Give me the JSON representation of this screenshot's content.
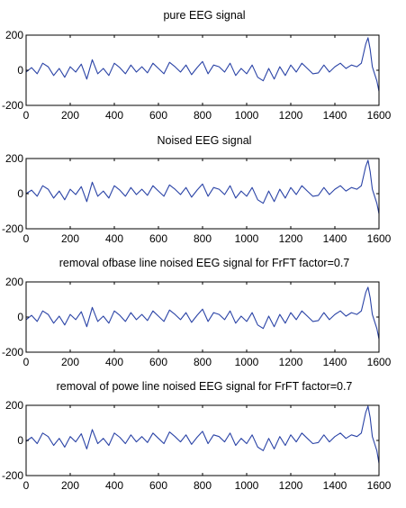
{
  "chart_data": [
    {
      "type": "line",
      "title": "pure EEG signal",
      "xlim": [
        0,
        1600
      ],
      "ylim": [
        -200,
        200
      ],
      "xticks": [
        0,
        200,
        400,
        600,
        800,
        1000,
        1200,
        1400,
        1600
      ],
      "yticks": [
        200,
        0,
        -200
      ],
      "x": [
        0,
        25,
        50,
        75,
        100,
        125,
        150,
        175,
        200,
        225,
        250,
        275,
        300,
        325,
        350,
        375,
        400,
        425,
        450,
        475,
        500,
        525,
        550,
        575,
        600,
        625,
        650,
        675,
        700,
        725,
        750,
        775,
        800,
        825,
        850,
        875,
        900,
        925,
        950,
        975,
        1000,
        1025,
        1050,
        1075,
        1100,
        1125,
        1150,
        1175,
        1200,
        1225,
        1250,
        1275,
        1300,
        1325,
        1350,
        1375,
        1400,
        1425,
        1450,
        1475,
        1500,
        1520,
        1540,
        1550,
        1560,
        1570,
        1580,
        1590,
        1600
      ],
      "y": [
        -10,
        15,
        -20,
        40,
        20,
        -30,
        10,
        -40,
        20,
        -10,
        35,
        -50,
        60,
        -20,
        10,
        -30,
        40,
        15,
        -20,
        30,
        -10,
        20,
        -15,
        40,
        10,
        -20,
        45,
        20,
        -10,
        30,
        -25,
        15,
        50,
        -20,
        30,
        20,
        -10,
        40,
        -30,
        10,
        -20,
        30,
        -40,
        -60,
        10,
        -50,
        20,
        -30,
        30,
        -10,
        40,
        10,
        -20,
        -15,
        30,
        -10,
        20,
        40,
        10,
        30,
        20,
        40,
        150,
        185,
        120,
        20,
        -20,
        -60,
        -120
      ]
    },
    {
      "type": "line",
      "title": "Noised EEG signal",
      "xlim": [
        0,
        1600
      ],
      "ylim": [
        -200,
        200
      ],
      "xticks": [
        0,
        200,
        400,
        600,
        800,
        1000,
        1200,
        1400,
        1600
      ],
      "yticks": [
        200,
        0,
        -200
      ],
      "x": [
        0,
        25,
        50,
        75,
        100,
        125,
        150,
        175,
        200,
        225,
        250,
        275,
        300,
        325,
        350,
        375,
        400,
        425,
        450,
        475,
        500,
        525,
        550,
        575,
        600,
        625,
        650,
        675,
        700,
        725,
        750,
        775,
        800,
        825,
        850,
        875,
        900,
        925,
        950,
        975,
        1000,
        1025,
        1050,
        1075,
        1100,
        1125,
        1150,
        1175,
        1200,
        1225,
        1250,
        1275,
        1300,
        1325,
        1350,
        1375,
        1400,
        1425,
        1450,
        1475,
        1500,
        1520,
        1540,
        1550,
        1560,
        1570,
        1580,
        1590,
        1600
      ],
      "y": [
        0,
        20,
        -15,
        45,
        25,
        -25,
        15,
        -35,
        25,
        -5,
        40,
        -45,
        65,
        -15,
        15,
        -25,
        45,
        20,
        -15,
        35,
        -5,
        25,
        -10,
        45,
        15,
        -15,
        50,
        25,
        -5,
        35,
        -20,
        20,
        55,
        -15,
        35,
        25,
        -5,
        45,
        -25,
        15,
        -15,
        35,
        -35,
        -55,
        15,
        -45,
        25,
        -25,
        35,
        -5,
        45,
        15,
        -15,
        -10,
        35,
        -5,
        25,
        45,
        15,
        35,
        25,
        45,
        155,
        190,
        125,
        25,
        -15,
        -55,
        -115
      ]
    },
    {
      "type": "line",
      "title": "removal  ofbase line noised EEG signal for FrFT factor=0.7",
      "xlim": [
        0,
        1600
      ],
      "ylim": [
        -200,
        200
      ],
      "xticks": [
        0,
        200,
        400,
        600,
        800,
        1000,
        1200,
        1400,
        1600
      ],
      "yticks": [
        200,
        0,
        -200
      ],
      "x": [
        0,
        25,
        50,
        75,
        100,
        125,
        150,
        175,
        200,
        225,
        250,
        275,
        300,
        325,
        350,
        375,
        400,
        425,
        450,
        475,
        500,
        525,
        550,
        575,
        600,
        625,
        650,
        675,
        700,
        725,
        750,
        775,
        800,
        825,
        850,
        875,
        900,
        925,
        950,
        975,
        1000,
        1025,
        1050,
        1075,
        1100,
        1125,
        1150,
        1175,
        1200,
        1225,
        1250,
        1275,
        1300,
        1325,
        1350,
        1375,
        1400,
        1425,
        1450,
        1475,
        1500,
        1520,
        1540,
        1550,
        1560,
        1570,
        1580,
        1590,
        1600
      ],
      "y": [
        -15,
        10,
        -25,
        35,
        15,
        -35,
        5,
        -45,
        15,
        -15,
        30,
        -55,
        55,
        -25,
        5,
        -35,
        35,
        10,
        -25,
        25,
        -15,
        15,
        -20,
        35,
        5,
        -25,
        40,
        15,
        -15,
        25,
        -30,
        10,
        45,
        -25,
        25,
        15,
        -15,
        35,
        -35,
        5,
        -25,
        25,
        -45,
        -65,
        5,
        -55,
        15,
        -35,
        25,
        -15,
        35,
        5,
        -25,
        -20,
        25,
        -15,
        15,
        35,
        5,
        25,
        15,
        35,
        140,
        170,
        110,
        15,
        -25,
        -65,
        -125
      ]
    },
    {
      "type": "line",
      "title": "removal  of powe line noised EEG signal for FrFT factor=0.7",
      "xlim": [
        0,
        1600
      ],
      "ylim": [
        -200,
        200
      ],
      "xticks": [
        0,
        200,
        400,
        600,
        800,
        1000,
        1200,
        1400,
        1600
      ],
      "yticks": [
        200,
        0,
        -200
      ],
      "x": [
        0,
        25,
        50,
        75,
        100,
        125,
        150,
        175,
        200,
        225,
        250,
        275,
        300,
        325,
        350,
        375,
        400,
        425,
        450,
        475,
        500,
        525,
        550,
        575,
        600,
        625,
        650,
        675,
        700,
        725,
        750,
        775,
        800,
        825,
        850,
        875,
        900,
        925,
        950,
        975,
        1000,
        1025,
        1050,
        1075,
        1100,
        1125,
        1150,
        1175,
        1200,
        1225,
        1250,
        1275,
        1300,
        1325,
        1350,
        1375,
        1400,
        1425,
        1450,
        1475,
        1500,
        1520,
        1540,
        1550,
        1560,
        1570,
        1580,
        1590,
        1600
      ],
      "y": [
        -5,
        18,
        -18,
        42,
        22,
        -28,
        12,
        -38,
        22,
        -8,
        38,
        -48,
        62,
        -18,
        12,
        -28,
        42,
        18,
        -18,
        32,
        -8,
        22,
        -12,
        42,
        12,
        -18,
        48,
        22,
        -8,
        32,
        -22,
        18,
        52,
        -18,
        32,
        22,
        -8,
        42,
        -28,
        12,
        -18,
        32,
        -38,
        -58,
        12,
        -48,
        22,
        -28,
        32,
        -8,
        42,
        12,
        -18,
        -12,
        32,
        -8,
        22,
        42,
        12,
        32,
        22,
        42,
        160,
        195,
        130,
        22,
        -18,
        -58,
        -130
      ]
    }
  ]
}
